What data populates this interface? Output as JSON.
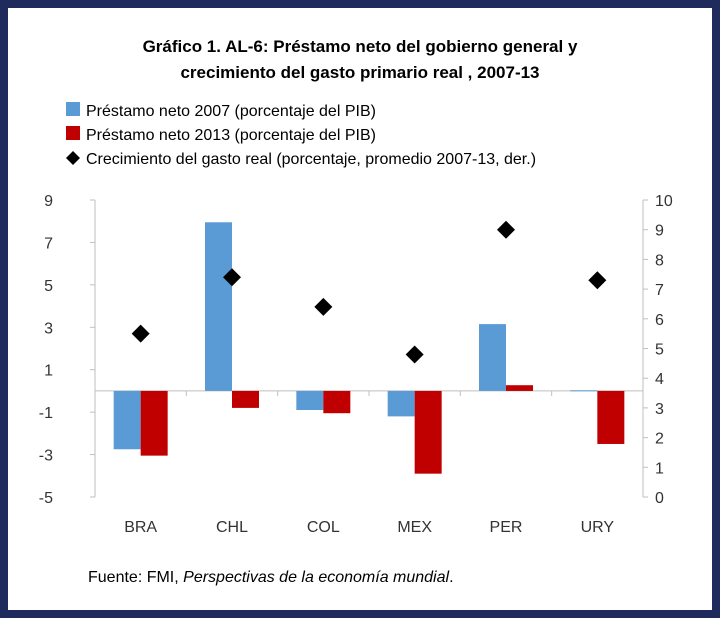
{
  "chart_data": {
    "type": "bar",
    "title_line1": "Gráfico 1. AL-6: Préstamo neto del gobierno general y",
    "title_line2": "crecimiento del gasto primario real , 2007-13",
    "categories": [
      "BRA",
      "CHL",
      "COL",
      "MEX",
      "PER",
      "URY"
    ],
    "series": [
      {
        "name": "Préstamo neto 2007 (porcentaje del PIB)",
        "type": "bar",
        "axis": "left",
        "color": "#5b9bd5",
        "values": [
          -2.75,
          7.95,
          -0.9,
          -1.2,
          3.15,
          0.03
        ]
      },
      {
        "name": "Préstamo neto 2013 (porcentaje del PIB)",
        "type": "bar",
        "axis": "left",
        "color": "#c00000",
        "values": [
          -3.05,
          -0.8,
          -1.05,
          -3.9,
          0.27,
          -2.5
        ]
      },
      {
        "name": "Crecimiento del gasto real (porcentaje, promedio 2007-13, der.)",
        "type": "scatter",
        "axis": "right",
        "color": "#000000",
        "values": [
          5.5,
          7.4,
          6.4,
          4.8,
          9.0,
          7.3
        ]
      }
    ],
    "ylim": [
      -5,
      9
    ],
    "yticks": [
      "-5",
      "-3",
      "-1",
      "1",
      "3",
      "5",
      "7",
      "9"
    ],
    "y2lim": [
      0,
      10
    ],
    "y2ticks": [
      "0",
      "1",
      "2",
      "3",
      "4",
      "5",
      "6",
      "7",
      "8",
      "9",
      "10"
    ],
    "legend_position": "top-left",
    "source_prefix": "Fuente: FMI, ",
    "source_italic": "Perspectivas de la economía mundial",
    "source_suffix": "."
  }
}
